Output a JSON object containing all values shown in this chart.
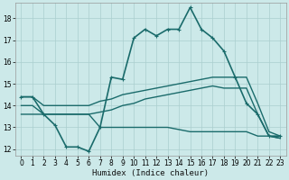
{
  "title": "",
  "xlabel": "Humidex (Indice chaleur)",
  "ylabel": "",
  "xlim": [
    -0.5,
    23.5
  ],
  "ylim": [
    11.7,
    18.7
  ],
  "xticks": [
    0,
    1,
    2,
    3,
    4,
    5,
    6,
    7,
    8,
    9,
    10,
    11,
    12,
    13,
    14,
    15,
    16,
    17,
    18,
    19,
    20,
    21,
    22,
    23
  ],
  "yticks": [
    12,
    13,
    14,
    15,
    16,
    17,
    18
  ],
  "background_color": "#cce9e9",
  "grid_color": "#aacece",
  "line_color": "#1a6b6b",
  "series": [
    {
      "x": [
        0,
        1,
        2,
        3,
        4,
        5,
        6,
        7,
        8,
        9,
        10,
        11,
        12,
        13,
        14,
        15,
        16,
        17,
        18,
        19,
        20,
        21,
        22,
        23
      ],
      "y": [
        14.4,
        14.4,
        13.6,
        13.1,
        12.1,
        12.1,
        11.9,
        13.0,
        15.3,
        15.2,
        17.1,
        17.5,
        17.2,
        17.5,
        17.5,
        18.5,
        17.5,
        17.1,
        16.5,
        15.3,
        14.1,
        13.6,
        12.6,
        12.6
      ],
      "marker": "+",
      "linewidth": 1.2,
      "markersize": 3.5
    },
    {
      "x": [
        0,
        1,
        2,
        3,
        4,
        5,
        6,
        7,
        8,
        9,
        10,
        11,
        12,
        13,
        14,
        15,
        16,
        17,
        18,
        19,
        20,
        21,
        22,
        23
      ],
      "y": [
        14.4,
        14.4,
        14.0,
        14.0,
        14.0,
        14.0,
        14.0,
        14.2,
        14.3,
        14.5,
        14.6,
        14.7,
        14.8,
        14.9,
        15.0,
        15.1,
        15.2,
        15.3,
        15.3,
        15.3,
        15.3,
        14.1,
        12.8,
        12.6
      ],
      "marker": null,
      "linewidth": 1.0,
      "markersize": 0
    },
    {
      "x": [
        0,
        1,
        2,
        3,
        4,
        5,
        6,
        7,
        8,
        9,
        10,
        11,
        12,
        13,
        14,
        15,
        16,
        17,
        18,
        19,
        20,
        21,
        22,
        23
      ],
      "y": [
        14.0,
        14.0,
        13.6,
        13.6,
        13.6,
        13.6,
        13.6,
        13.7,
        13.8,
        14.0,
        14.1,
        14.3,
        14.4,
        14.5,
        14.6,
        14.7,
        14.8,
        14.9,
        14.8,
        14.8,
        14.8,
        13.6,
        12.6,
        12.5
      ],
      "marker": null,
      "linewidth": 1.0,
      "markersize": 0
    },
    {
      "x": [
        0,
        1,
        2,
        3,
        4,
        5,
        6,
        7,
        8,
        9,
        10,
        11,
        12,
        13,
        14,
        15,
        16,
        17,
        18,
        19,
        20,
        21,
        22,
        23
      ],
      "y": [
        13.6,
        13.6,
        13.6,
        13.6,
        13.6,
        13.6,
        13.6,
        13.0,
        13.0,
        13.0,
        13.0,
        13.0,
        13.0,
        13.0,
        12.9,
        12.8,
        12.8,
        12.8,
        12.8,
        12.8,
        12.8,
        12.6,
        12.6,
        12.5
      ],
      "marker": null,
      "linewidth": 1.0,
      "markersize": 0
    }
  ]
}
